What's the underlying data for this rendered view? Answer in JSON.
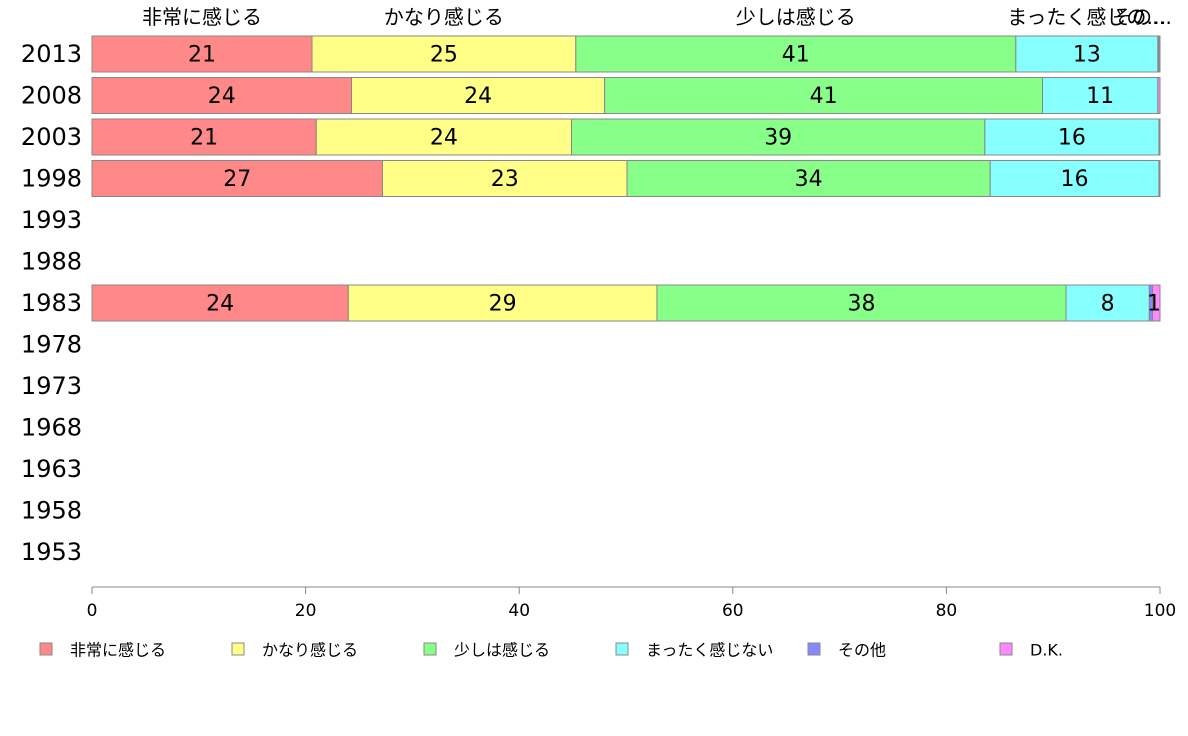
{
  "chart_data": {
    "type": "bar",
    "orientation": "horizontal",
    "stacked": true,
    "xlim": [
      0,
      100
    ],
    "x_ticks": [
      0,
      20,
      40,
      60,
      80,
      100
    ],
    "grid": false,
    "legend_position": "bottom",
    "categories": [
      "2013",
      "2008",
      "2003",
      "1998",
      "1993",
      "1988",
      "1983",
      "1978",
      "1973",
      "1968",
      "1963",
      "1958",
      "1953"
    ],
    "series": [
      {
        "name": "非常に感じる",
        "color": "#ff8888",
        "values": [
          20.6,
          24.3,
          21.0,
          27.2,
          null,
          null,
          24.0,
          null,
          null,
          null,
          null,
          null,
          null
        ],
        "labels": [
          "21",
          "24",
          "21",
          "27",
          "",
          "",
          "24",
          "",
          "",
          "",
          "",
          "",
          ""
        ]
      },
      {
        "name": "かなり感じる",
        "color": "#ffff88",
        "values": [
          24.7,
          23.7,
          23.9,
          22.9,
          null,
          null,
          28.9,
          null,
          null,
          null,
          null,
          null,
          null
        ],
        "labels": [
          "25",
          "24",
          "24",
          "23",
          "",
          "",
          "29",
          "",
          "",
          "",
          "",
          "",
          ""
        ]
      },
      {
        "name": "少しは感じる",
        "color": "#88ff88",
        "values": [
          41.2,
          41.0,
          38.7,
          34.0,
          null,
          null,
          38.3,
          null,
          null,
          null,
          null,
          null,
          null
        ],
        "labels": [
          "41",
          "41",
          "39",
          "34",
          "",
          "",
          "38",
          "",
          "",
          "",
          "",
          "",
          ""
        ]
      },
      {
        "name": "まったく感じない",
        "color": "#88ffff",
        "values": [
          13.3,
          10.8,
          16.3,
          15.8,
          null,
          null,
          7.8,
          null,
          null,
          null,
          null,
          null,
          null
        ],
        "labels": [
          "13",
          "11",
          "16",
          "16",
          "",
          "",
          "8",
          "",
          "",
          "",
          "",
          "",
          ""
        ]
      },
      {
        "name": "その他",
        "color": "#8888ff",
        "values": [
          0.1,
          0.0,
          0.0,
          0.0,
          null,
          null,
          0.3,
          null,
          null,
          null,
          null,
          null,
          null
        ],
        "labels": [
          "",
          "",
          "",
          "",
          "",
          "",
          "",
          "",
          "",
          "",
          "",
          "",
          ""
        ]
      },
      {
        "name": "D.K.",
        "color": "#ff88ff",
        "values": [
          0.1,
          0.2,
          0.1,
          0.1,
          null,
          null,
          0.7,
          null,
          null,
          null,
          null,
          null,
          null
        ],
        "labels": [
          "",
          "",
          "",
          "",
          "",
          "",
          "1",
          "",
          "",
          "",
          "",
          "",
          ""
        ]
      }
    ],
    "top_labels": [
      "非常に感じる",
      "かなり感じる",
      "少しは感じる",
      "まったく感じの…",
      "その…"
    ]
  }
}
